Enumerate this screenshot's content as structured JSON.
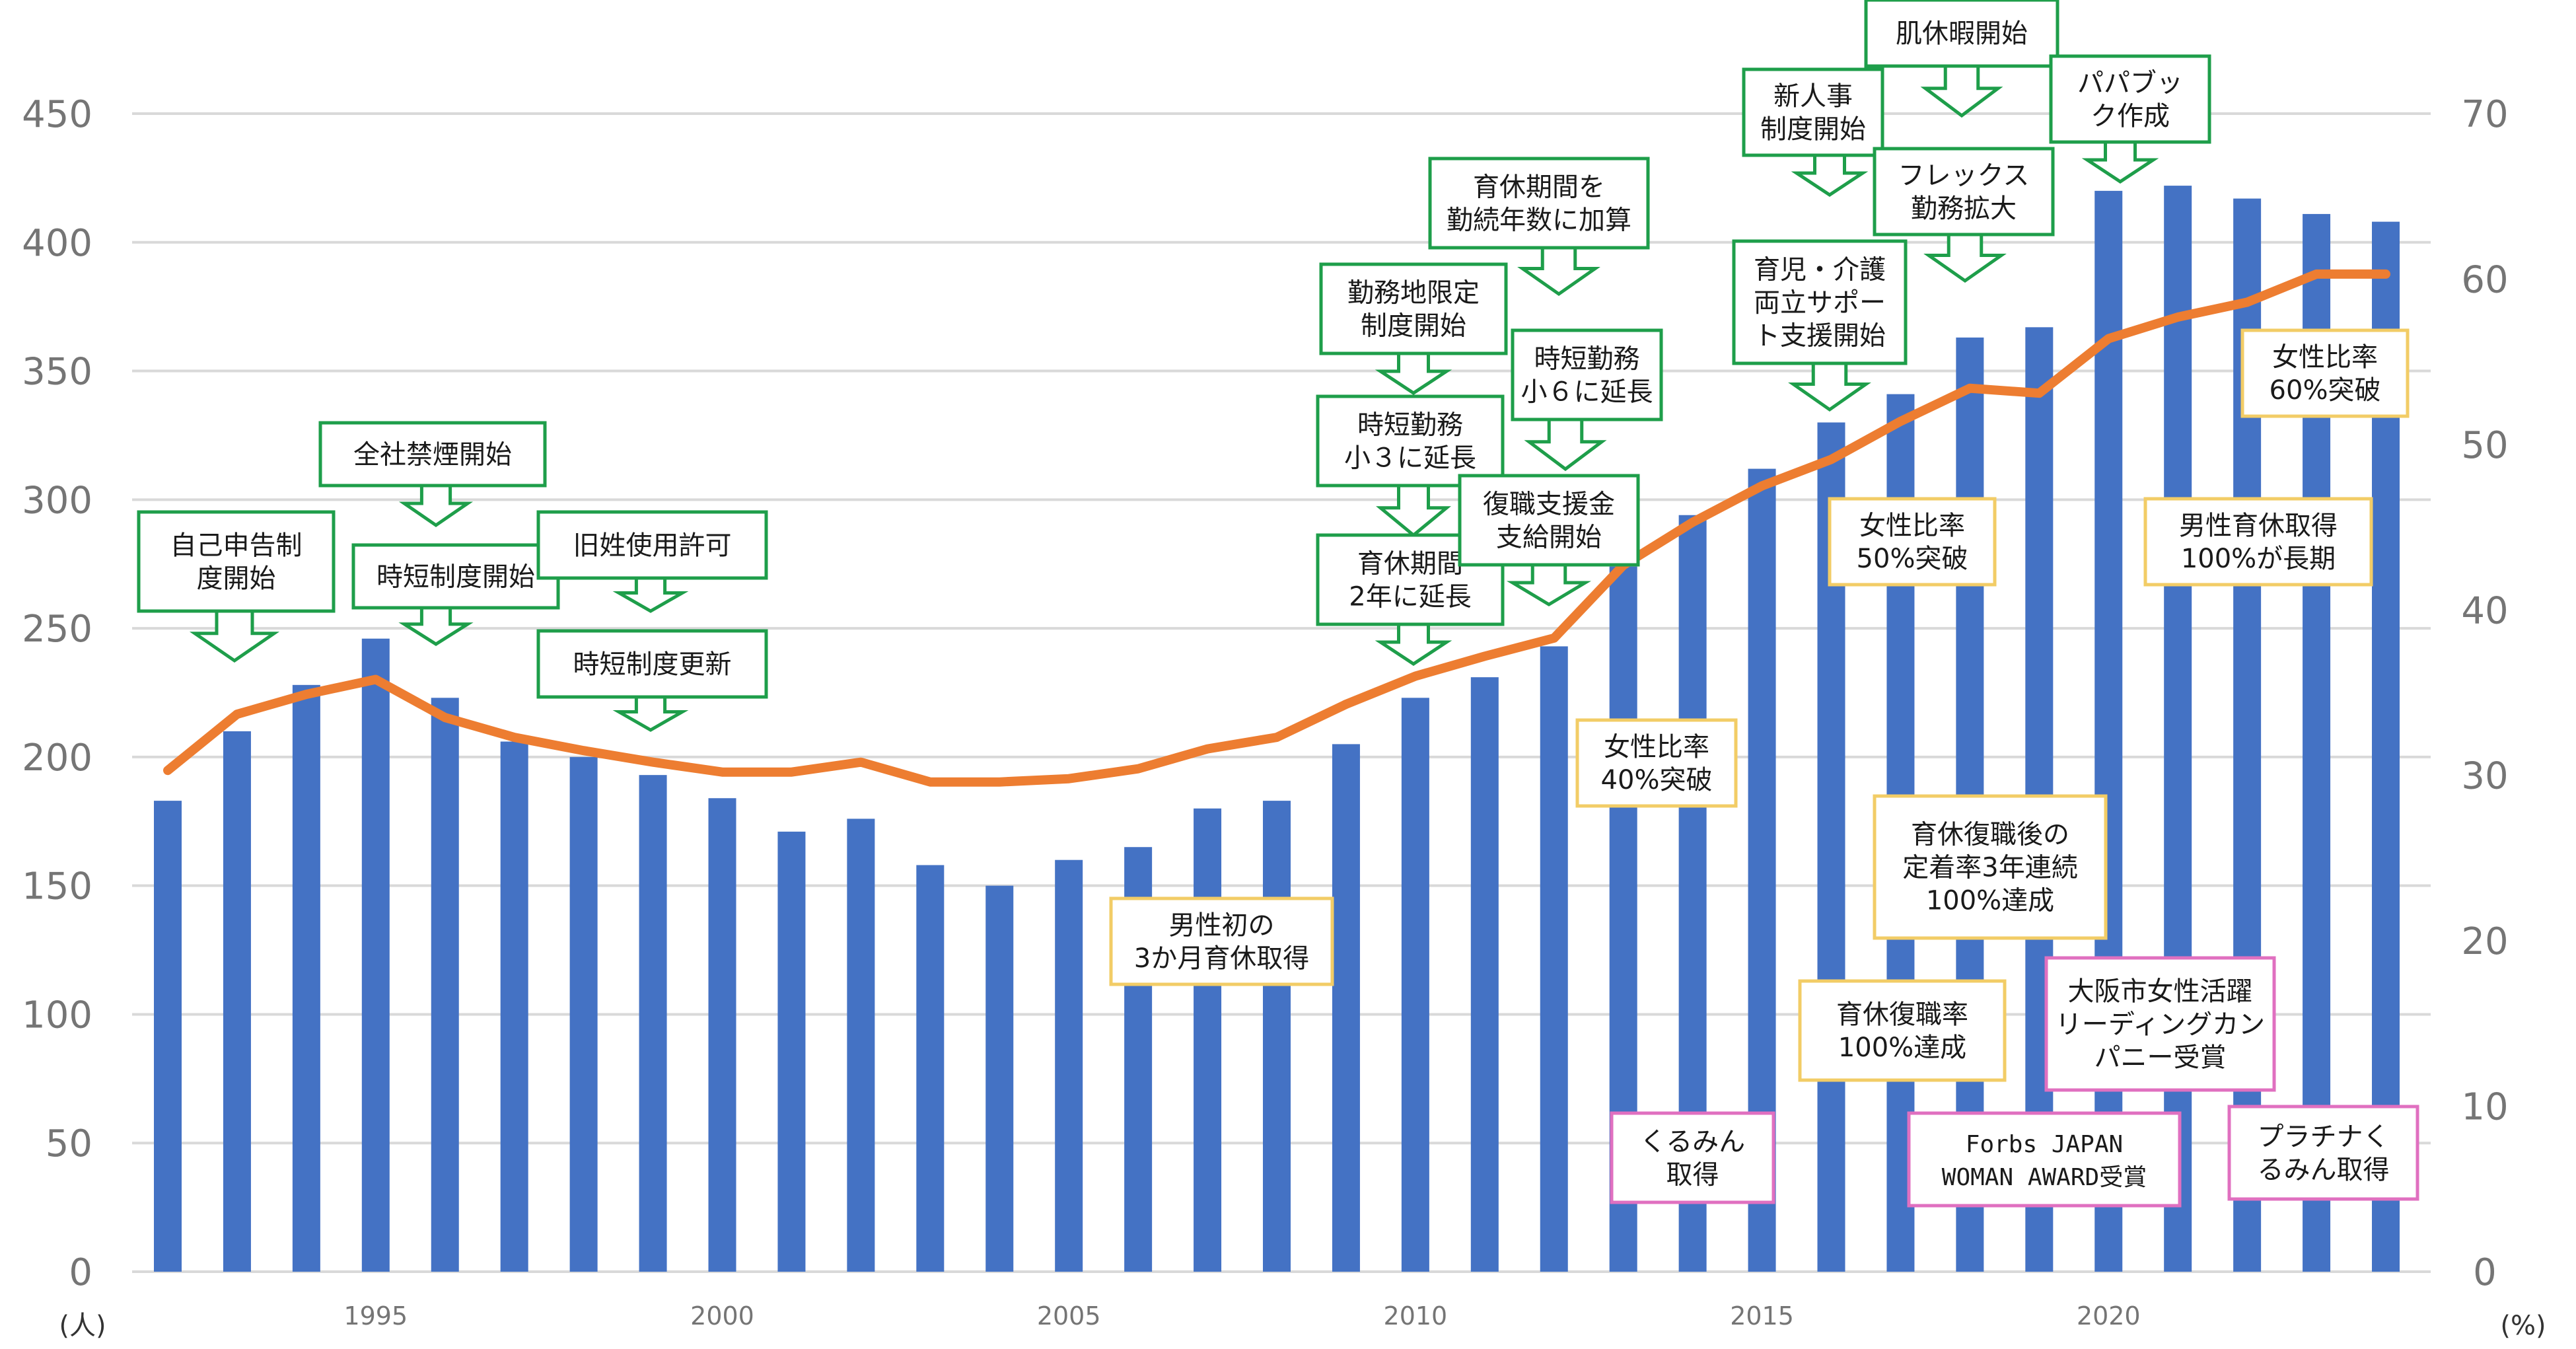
{
  "chart_data": {
    "type": "bar+line",
    "title": "",
    "x_ticks": [
      "1995",
      "2000",
      "2005",
      "2010",
      "2015",
      "2020"
    ],
    "y_left": {
      "unit": "(人)",
      "ylim": [
        0,
        450
      ],
      "ticks": [
        "0",
        "50",
        "100",
        "150",
        "200",
        "250",
        "300",
        "350",
        "400",
        "450"
      ]
    },
    "y_right": {
      "unit": "(%)",
      "ylim": [
        0,
        70
      ],
      "ticks": [
        "0",
        "10",
        "20",
        "30",
        "40",
        "50",
        "60",
        "70"
      ]
    },
    "grid": true,
    "legend": "none",
    "x": [
      1992,
      1993,
      1994,
      1995,
      1996,
      1997,
      1998,
      1999,
      2000,
      2001,
      2002,
      2003,
      2004,
      2005,
      2006,
      2007,
      2008,
      2009,
      2010,
      2011,
      2012,
      2013,
      2014,
      2015,
      2016,
      2017,
      2018,
      2019,
      2020,
      2021,
      2022,
      2023,
      2024
    ],
    "series": [
      {
        "type": "bar",
        "axis": "left",
        "color": "#4472C4",
        "values": [
          183,
          210,
          228,
          246,
          223,
          206,
          200,
          193,
          184,
          171,
          176,
          158,
          150,
          160,
          165,
          180,
          183,
          205,
          223,
          231,
          243,
          274,
          294,
          312,
          330,
          341,
          363,
          367,
          420,
          422,
          417,
          411,
          408
        ]
      },
      {
        "type": "line",
        "axis": "right",
        "color": "#ED7D31",
        "values": [
          30.3,
          33.7,
          34.9,
          35.8,
          33.5,
          32.3,
          31.5,
          30.8,
          30.2,
          30.2,
          30.8,
          29.6,
          29.6,
          29.8,
          30.4,
          31.6,
          32.3,
          34.3,
          36.0,
          37.2,
          38.3,
          42.7,
          45.3,
          47.5,
          49.1,
          51.4,
          53.4,
          53.1,
          56.4,
          57.7,
          58.6,
          60.3,
          60.3
        ]
      }
    ],
    "annotations": [
      {
        "kind": "policy",
        "lines": [
          "自己申告制",
          "度開始"
        ],
        "year": 1993
      },
      {
        "kind": "policy",
        "lines": [
          "全社禁煙開始"
        ],
        "year": 1996
      },
      {
        "kind": "policy",
        "lines": [
          "時短制度開始"
        ],
        "year": 1996
      },
      {
        "kind": "policy",
        "lines": [
          "旧姓使用許可"
        ],
        "year": 1999
      },
      {
        "kind": "policy",
        "lines": [
          "時短制度更新"
        ],
        "year": 1999
      },
      {
        "kind": "policy",
        "lines": [
          "勤務地限定",
          "制度開始"
        ],
        "year": 2010
      },
      {
        "kind": "policy",
        "lines": [
          "時短勤務",
          "小３に延長"
        ],
        "year": 2010
      },
      {
        "kind": "policy",
        "lines": [
          "育休期間",
          "2年に延長"
        ],
        "year": 2010
      },
      {
        "kind": "policy",
        "lines": [
          "育休期間を",
          "勤続年数に加算"
        ],
        "year": 2012
      },
      {
        "kind": "policy",
        "lines": [
          "時短勤務",
          "小６に延長"
        ],
        "year": 2012
      },
      {
        "kind": "policy",
        "lines": [
          "復職支援金",
          "支給開始"
        ],
        "year": 2012
      },
      {
        "kind": "policy",
        "lines": [
          "新人事",
          "制度開始"
        ],
        "year": 2016
      },
      {
        "kind": "policy",
        "lines": [
          "育児・介護",
          "両立サポー",
          "ト支援開始"
        ],
        "year": 2016
      },
      {
        "kind": "policy",
        "lines": [
          "肌休暇開始"
        ],
        "year": 2018
      },
      {
        "kind": "policy",
        "lines": [
          "フレックス",
          "勤務拡大"
        ],
        "year": 2018
      },
      {
        "kind": "policy",
        "lines": [
          "パパブッ",
          "ク作成"
        ],
        "year": 2020
      },
      {
        "kind": "milestone",
        "lines": [
          "男性初の",
          "3か月育休取得"
        ]
      },
      {
        "kind": "milestone",
        "lines": [
          "女性比率",
          "40%突破"
        ]
      },
      {
        "kind": "milestone",
        "lines": [
          "女性比率",
          "50%突破"
        ]
      },
      {
        "kind": "milestone",
        "lines": [
          "育休復職後の",
          "定着率3年連続",
          "100%達成"
        ]
      },
      {
        "kind": "milestone",
        "lines": [
          "育休復職率",
          "100%達成"
        ]
      },
      {
        "kind": "milestone",
        "lines": [
          "男性育休取得",
          "100%が長期"
        ]
      },
      {
        "kind": "milestone",
        "lines": [
          "女性比率",
          "60%突破"
        ]
      },
      {
        "kind": "award",
        "lines": [
          "くるみん",
          "取得"
        ]
      },
      {
        "kind": "award",
        "lines": [
          "Forbs JAPAN",
          "WOMAN AWARD受賞"
        ]
      },
      {
        "kind": "award",
        "lines": [
          "大阪市女性活躍",
          "リーディングカン",
          "パニー受賞"
        ]
      },
      {
        "kind": "award",
        "lines": [
          "プラチナく",
          "るみん取得"
        ]
      }
    ]
  },
  "colors": {
    "policy_border": "#1E9E4A",
    "milestone_border": "#F2CC66",
    "award_border": "#E070C0",
    "grid": "#D9D9D9"
  }
}
